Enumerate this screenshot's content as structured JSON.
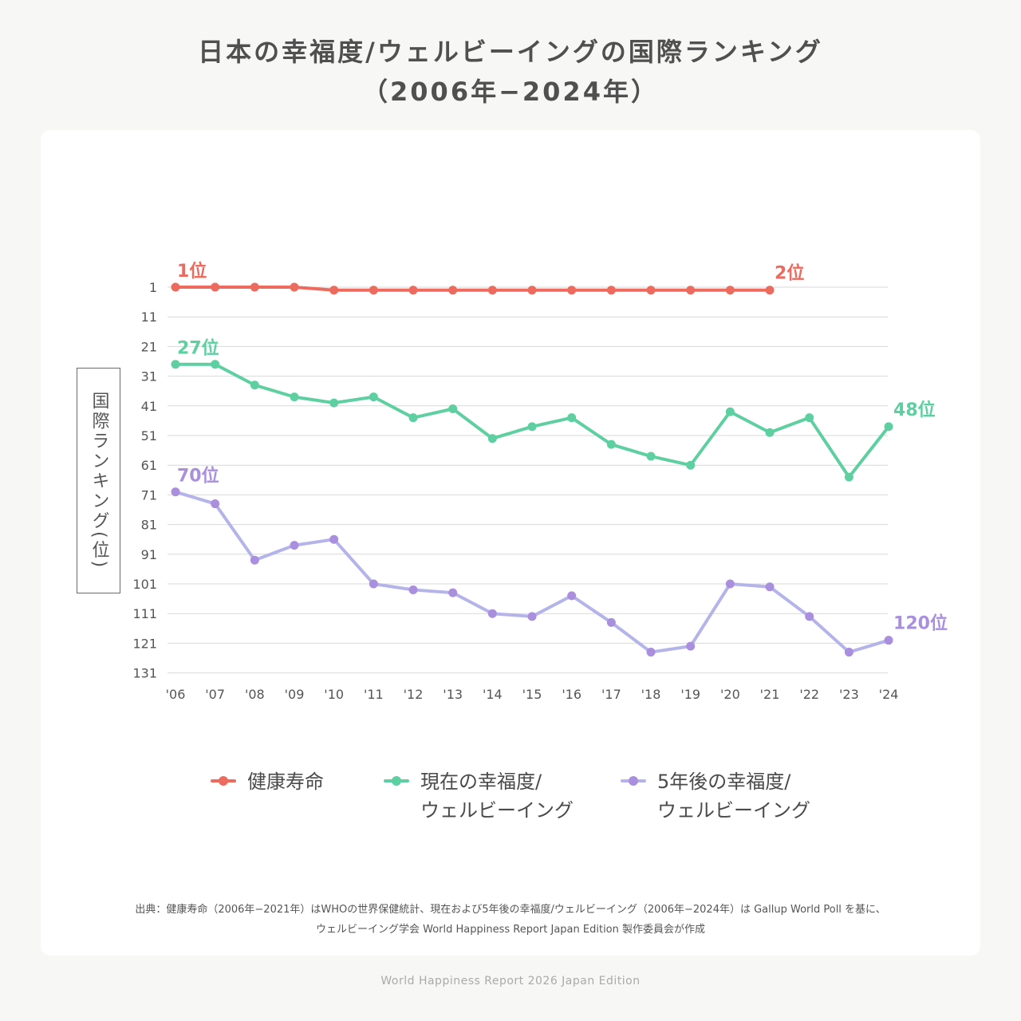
{
  "header": {
    "title_line1": "日本の幸福度/ウェルビーイングの国際ランキング",
    "title_line2": "（2006年−2024年）"
  },
  "colors": {
    "health": "#ec6b5e",
    "current": "#5ecfa0",
    "future": "#b4b3ea",
    "future_dot": "#a98fde",
    "grid": "#d9d9d9",
    "axis_text": "#555555"
  },
  "chart_data": {
    "type": "line",
    "title": "日本の幸福度/ウェルビーイングの国際ランキング（2006年−2024年）",
    "ylabel": "国際ランキング(位)",
    "xlabel": "",
    "ylim": [
      1,
      131
    ],
    "y_inverted": true,
    "yticks": [
      1,
      11,
      21,
      31,
      41,
      51,
      61,
      71,
      81,
      91,
      101,
      111,
      121,
      131
    ],
    "categories": [
      "'06",
      "'07",
      "'08",
      "'09",
      "'10",
      "'11",
      "'12",
      "'13",
      "'14",
      "'15",
      "'16",
      "'17",
      "'18",
      "'19",
      "'20",
      "'21",
      "'22",
      "'23",
      "'24"
    ],
    "series": [
      {
        "key": "health",
        "name": "健康寿命",
        "values": [
          1,
          1,
          1,
          1,
          2,
          2,
          2,
          2,
          2,
          2,
          2,
          2,
          2,
          2,
          2,
          2,
          null,
          null,
          null
        ],
        "labels": [
          {
            "index": 0,
            "text": "1位",
            "pos": "above"
          },
          {
            "index": 15,
            "text": "2位",
            "pos": "above-right"
          }
        ]
      },
      {
        "key": "current",
        "name": "現在の幸福度/ウェルビーイング",
        "values": [
          27,
          27,
          34,
          38,
          40,
          38,
          45,
          42,
          52,
          48,
          45,
          54,
          58,
          61,
          43,
          50,
          45,
          65,
          48
        ],
        "labels": [
          {
            "index": 0,
            "text": "27位",
            "pos": "above"
          },
          {
            "index": 18,
            "text": "48位",
            "pos": "above-right"
          }
        ]
      },
      {
        "key": "future",
        "name": "5年後の幸福度/ウェルビーイング",
        "values": [
          70,
          74,
          93,
          88,
          86,
          101,
          103,
          104,
          111,
          112,
          105,
          114,
          124,
          122,
          101,
          102,
          112,
          124,
          120
        ],
        "labels": [
          {
            "index": 0,
            "text": "70位",
            "pos": "above"
          },
          {
            "index": 18,
            "text": "120位",
            "pos": "above-right"
          }
        ]
      }
    ]
  },
  "legend": {
    "health": {
      "line1": "健康寿命",
      "line2": ""
    },
    "current": {
      "line1": "現在の幸福度/",
      "line2": "ウェルビーイング"
    },
    "future": {
      "line1": "5年後の幸福度/",
      "line2": "ウェルビーイング"
    }
  },
  "source": {
    "line1": "出典：健康寿命（2006年−2021年）はWHOの世界保健統計、現在および5年後の幸福度/ウェルビーイング（2006年−2024年）は Gallup World Poll を基に、",
    "line2": "ウェルビーイング学会 World Happiness Report Japan Edition 製作委員会が作成"
  },
  "footer": "World Happiness Report 2026 Japan Edition"
}
